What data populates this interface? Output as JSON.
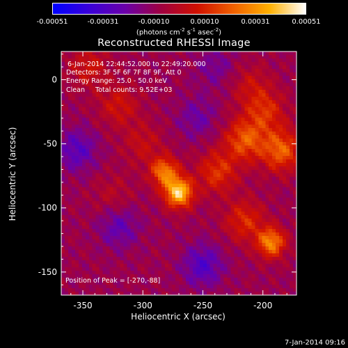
{
  "chart_data": {
    "type": "heatmap",
    "title": "Reconstructed RHESSI Image",
    "xlabel": "Heliocentric X (arcsec)",
    "ylabel": "Heliocentric Y (arcsec)",
    "xlim": [
      -368,
      -172
    ],
    "ylim": [
      -168,
      22
    ],
    "x_ticks": [
      -350,
      -300,
      -250,
      -200
    ],
    "y_ticks": [
      -150,
      -100,
      -50,
      0
    ],
    "colorbar": {
      "min": -0.00051,
      "max": 0.00051,
      "tick_values": [
        -0.00051,
        -0.00031,
        -0.0001,
        0.0001,
        0.00031,
        0.00051
      ],
      "tick_labels": [
        "-0.00051",
        "-0.00031",
        "-0.00010",
        "0.00010",
        "0.00031",
        "0.00051"
      ],
      "colors": [
        "#0000ff",
        "#3a00d8",
        "#6a00a8",
        "#a00040",
        "#d01000",
        "#f06000",
        "#ffb000",
        "#ffffff"
      ]
    },
    "annotations": [
      "6-Jan-2014 22:44:52.000 to 22:49:20.000",
      "Detectors: 3F 5F 6F 7F 8F 9F, Att 0",
      "Energy Range: 25.0 - 50.0 keV",
      "Clean     Total counts: 9.52E+03"
    ],
    "peak_label": "Position of Peak = [-270,-88]",
    "peak": [
      -270,
      -88
    ],
    "sources": [
      {
        "x": -270,
        "y": -88,
        "intensity": 0.00051
      },
      {
        "x": -282,
        "y": -72,
        "intensity": 0.00035
      },
      {
        "x": -238,
        "y": -72,
        "intensity": 0.00022
      },
      {
        "x": -215,
        "y": -47,
        "intensity": 0.00028
      },
      {
        "x": -185,
        "y": -55,
        "intensity": 0.0003
      },
      {
        "x": -198,
        "y": -25,
        "intensity": 0.0002
      },
      {
        "x": -320,
        "y": -20,
        "intensity": 0.00015
      },
      {
        "x": -345,
        "y": 10,
        "intensity": 0.00015
      },
      {
        "x": -300,
        "y": -50,
        "intensity": 0.00012
      },
      {
        "x": -193,
        "y": -127,
        "intensity": 0.00038
      },
      {
        "x": -215,
        "y": -110,
        "intensity": 0.0002
      },
      {
        "x": -210,
        "y": -5,
        "intensity": 0.00012
      },
      {
        "x": -325,
        "y": -90,
        "intensity": 8e-05
      },
      {
        "x": -320,
        "y": -115,
        "intensity": -0.00015
      },
      {
        "x": -250,
        "y": -145,
        "intensity": -0.0002
      },
      {
        "x": -355,
        "y": -55,
        "intensity": -0.00018
      },
      {
        "x": -255,
        "y": -30,
        "intensity": -0.00012
      },
      {
        "x": -240,
        "y": 10,
        "intensity": -0.0001
      }
    ]
  },
  "unit_main": "(photons cm",
  "unit_exp1": "-2",
  "unit_s": " s",
  "unit_exp2": "-1",
  "unit_asec": " asec",
  "unit_exp3": "-2",
  "unit_close": ")",
  "footer_date": "7-Jan-2014 09:16"
}
